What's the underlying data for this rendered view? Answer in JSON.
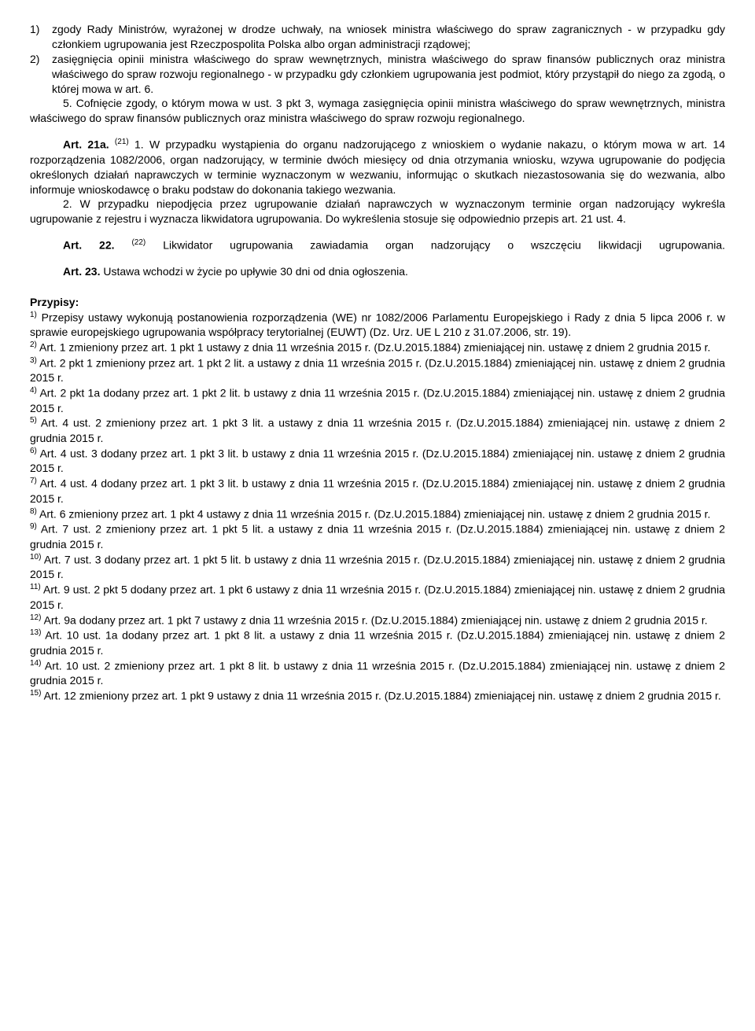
{
  "list1": {
    "num": "1)",
    "text": "zgody Rady Ministrów, wyrażonej w drodze uchwały, na wniosek ministra właściwego do spraw zagranicznych - w przypadku gdy członkiem ugrupowania jest Rzeczpospolita Polska albo organ administracji rządowej;"
  },
  "list2": {
    "num": "2)",
    "text": "zasięgnięcia opinii ministra właściwego do spraw wewnętrznych, ministra właściwego do spraw finansów publicznych oraz ministra właściwego do spraw rozwoju regionalnego - w przypadku gdy członkiem ugrupowania jest podmiot, który przystąpił do niego za zgodą, o której mowa w art. 6."
  },
  "p5": "5. Cofnięcie zgody, o którym mowa w ust. 3 pkt 3, wymaga zasięgnięcia opinii ministra właściwego do spraw wewnętrznych, ministra właściwego do spraw finansów publicznych oraz ministra właściwego do spraw rozwoju regionalnego.",
  "art21a": {
    "label": "Art. 21a.",
    "sup": "(21)",
    "first": "1. W przypadku wystąpienia do organu nadzorującego z wnioskiem o wydanie nakazu, o którym mowa w art. 14 rozporządzenia 1082/2006, organ nadzorujący, w terminie dwóch miesięcy od dnia otrzymania wniosku, wzywa ugrupowanie do podjęcia określonych działań naprawczych w terminie wyznaczonym w wezwaniu, informując o skutkach niezastosowania się do wezwania, albo informuje wnioskodawcę o braku podstaw do dokonania takiego wezwania.",
    "second": "2. W przypadku niepodjęcia przez ugrupowanie działań naprawczych w wyznaczonym terminie organ nadzorujący wykreśla ugrupowanie z rejestru i wyznacza likwidatora ugrupowania. Do wykreślenia stosuje się odpowiednio przepis art. 21 ust. 4."
  },
  "art22": {
    "label": "Art. 22.",
    "sup": "(22)",
    "text": "Likwidator ugrupowania zawiadamia organ nadzorujący o wszczęciu likwidacji ugrupowania."
  },
  "art23": {
    "label": "Art. 23.",
    "text": "Ustawa wchodzi w życie po upływie 30 dni od dnia ogłoszenia."
  },
  "przypisyHeader": "Przypisy:",
  "fn1": {
    "sup": "1)",
    "text": "Przepisy ustawy wykonują postanowienia rozporządzenia (WE) nr 1082/2006 Parlamentu Europejskiego i Rady z dnia 5 lipca 2006 r. w sprawie europejskiego ugrupowania współpracy terytorialnej (EUWT) (Dz. Urz. UE L 210 z 31.07.2006, str. 19)."
  },
  "fn2": {
    "sup": "2)",
    "text": "Art. 1 zmieniony przez art. 1 pkt 1 ustawy z dnia 11 września 2015 r. (Dz.U.2015.1884) zmieniającej nin. ustawę z dniem 2 grudnia 2015 r."
  },
  "fn3": {
    "sup": "3)",
    "text": "Art. 2 pkt 1 zmieniony przez art. 1 pkt 2 lit. a ustawy z dnia 11 września 2015 r. (Dz.U.2015.1884) zmieniającej nin. ustawę z dniem 2 grudnia 2015 r."
  },
  "fn4": {
    "sup": "4)",
    "text": "Art. 2 pkt 1a dodany przez art. 1 pkt 2 lit. b ustawy z dnia 11 września 2015 r. (Dz.U.2015.1884) zmieniającej nin. ustawę z dniem 2 grudnia 2015 r."
  },
  "fn5": {
    "sup": "5)",
    "text": "Art. 4 ust. 2 zmieniony przez art. 1 pkt 3 lit. a ustawy z dnia 11 września 2015 r. (Dz.U.2015.1884) zmieniającej nin. ustawę z dniem 2 grudnia 2015 r."
  },
  "fn6": {
    "sup": "6)",
    "text": "Art. 4 ust. 3 dodany przez art. 1 pkt 3 lit. b ustawy z dnia 11 września 2015 r. (Dz.U.2015.1884) zmieniającej nin. ustawę z dniem 2 grudnia 2015 r."
  },
  "fn7": {
    "sup": "7)",
    "text": "Art. 4 ust. 4 dodany przez art. 1 pkt 3 lit. b ustawy z dnia 11 września 2015 r. (Dz.U.2015.1884) zmieniającej nin. ustawę z dniem 2 grudnia 2015 r."
  },
  "fn8": {
    "sup": "8)",
    "text": "Art. 6 zmieniony przez art. 1 pkt 4 ustawy z dnia 11 września 2015 r. (Dz.U.2015.1884) zmieniającej nin. ustawę z dniem 2 grudnia 2015 r."
  },
  "fn9": {
    "sup": "9)",
    "text": "Art. 7 ust. 2 zmieniony przez art. 1 pkt 5 lit. a ustawy z dnia 11 września 2015 r. (Dz.U.2015.1884) zmieniającej nin. ustawę z dniem 2 grudnia 2015 r."
  },
  "fn10": {
    "sup": "10)",
    "text": "Art. 7 ust. 3 dodany przez art. 1 pkt 5 lit. b ustawy z dnia 11 września 2015 r. (Dz.U.2015.1884) zmieniającej nin. ustawę z dniem 2 grudnia 2015 r."
  },
  "fn11": {
    "sup": "11)",
    "text": "Art. 9 ust. 2 pkt 5 dodany przez art. 1 pkt 6 ustawy z dnia 11 września 2015 r. (Dz.U.2015.1884) zmieniającej nin. ustawę z dniem 2 grudnia 2015 r."
  },
  "fn12": {
    "sup": "12)",
    "text": "Art. 9a dodany przez art. 1 pkt 7 ustawy z dnia 11 września 2015 r. (Dz.U.2015.1884) zmieniającej nin. ustawę z dniem 2 grudnia 2015 r."
  },
  "fn13": {
    "sup": "13)",
    "text": "Art. 10 ust. 1a dodany przez art. 1 pkt 8 lit. a ustawy z dnia 11 września 2015 r. (Dz.U.2015.1884) zmieniającej nin. ustawę z dniem 2 grudnia 2015 r."
  },
  "fn14": {
    "sup": "14)",
    "text": "Art. 10 ust. 2 zmieniony przez art. 1 pkt 8 lit. b ustawy z dnia 11 września 2015 r. (Dz.U.2015.1884) zmieniającej nin. ustawę z dniem 2 grudnia 2015 r."
  },
  "fn15": {
    "sup": "15)",
    "text": "Art. 12 zmieniony przez art. 1 pkt 9 ustawy z dnia 11 września 2015 r. (Dz.U.2015.1884) zmieniającej nin. ustawę z dniem 2 grudnia 2015 r."
  }
}
